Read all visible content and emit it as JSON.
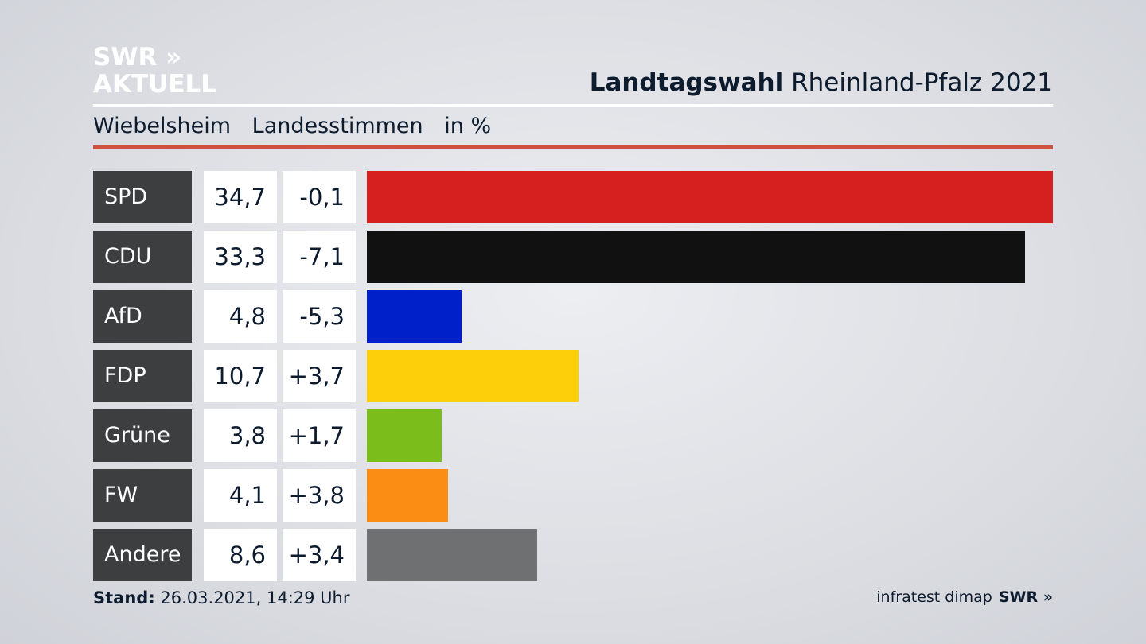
{
  "logo": {
    "line1": "SWR »",
    "line2": "AKTUELL"
  },
  "header": {
    "title_bold": "Landtagswahl",
    "title_rest": " Rheinland-Pfalz 2021"
  },
  "subheader": {
    "place": "Wiebelsheim",
    "vote_type": "Landesstimmen",
    "unit": "in %"
  },
  "colors": {
    "accent_line": "#d0503f",
    "label_bg": "#3d3e3f"
  },
  "chart_data": {
    "type": "bar",
    "orientation": "horizontal",
    "categories": [
      "SPD",
      "CDU",
      "AfD",
      "FDP",
      "Grüne",
      "FW",
      "Andere"
    ],
    "values": [
      34.7,
      33.3,
      4.8,
      10.7,
      3.8,
      4.1,
      8.6
    ],
    "value_labels": [
      "34,7",
      "33,3",
      "4,8",
      "10,7",
      "3,8",
      "4,1",
      "8,6"
    ],
    "changes": [
      "-0,1",
      "-7,1",
      "-5,3",
      "+3,7",
      "+1,7",
      "+3,8",
      "+3,4"
    ],
    "bar_colors": [
      "#d61f1f",
      "#111111",
      "#0021c9",
      "#fccf0a",
      "#7bbd1a",
      "#fb8c14",
      "#6f7072"
    ],
    "xlim": [
      0,
      34.7
    ]
  },
  "footer": {
    "stand_label": "Stand:",
    "stand_value": " 26.03.2021, 14:29 Uhr",
    "source": "infratest dimap",
    "brand": "SWR »"
  }
}
